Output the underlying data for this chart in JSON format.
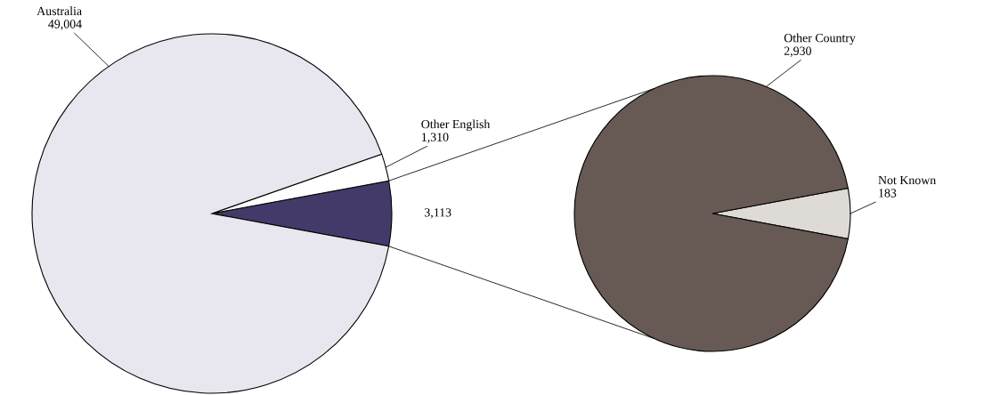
{
  "chart_data": [
    {
      "type": "pie",
      "categories": [
        null,
        "Other English",
        "Australia"
      ],
      "values": [
        3113,
        1310,
        49004
      ],
      "value_labels": [
        "3,113",
        "1,310",
        "49,004"
      ],
      "colors": [
        "#433a6a",
        "#ffffff",
        "#e8e6ef"
      ]
    },
    {
      "type": "pie",
      "categories": [
        "Not Known",
        "Other Country"
      ],
      "values": [
        183,
        2930
      ],
      "value_labels": [
        "183",
        "2,930"
      ],
      "colors": [
        "#dedad6",
        "#675a55"
      ]
    }
  ]
}
